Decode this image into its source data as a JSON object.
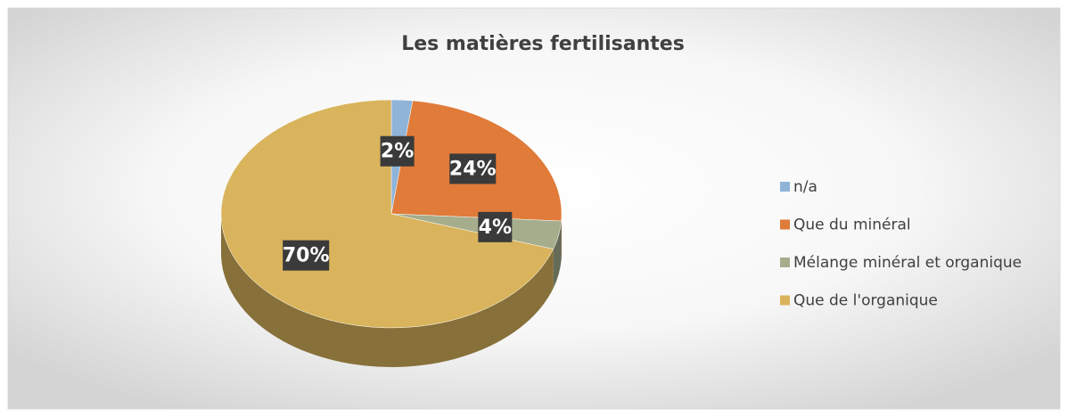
{
  "chart_data": {
    "type": "pie",
    "title": "Les matières fertilisantes",
    "categories": [
      "n/a",
      "Que du minéral",
      "Mélange minéral et organique",
      "Que de l'organique"
    ],
    "values": [
      2,
      24,
      4,
      70
    ],
    "value_labels": [
      "2%",
      "24%",
      "4%",
      "70%"
    ],
    "colors": [
      "#8fb4d8",
      "#e07b39",
      "#a5ad8c",
      "#d9b45c"
    ],
    "legend": "right"
  }
}
